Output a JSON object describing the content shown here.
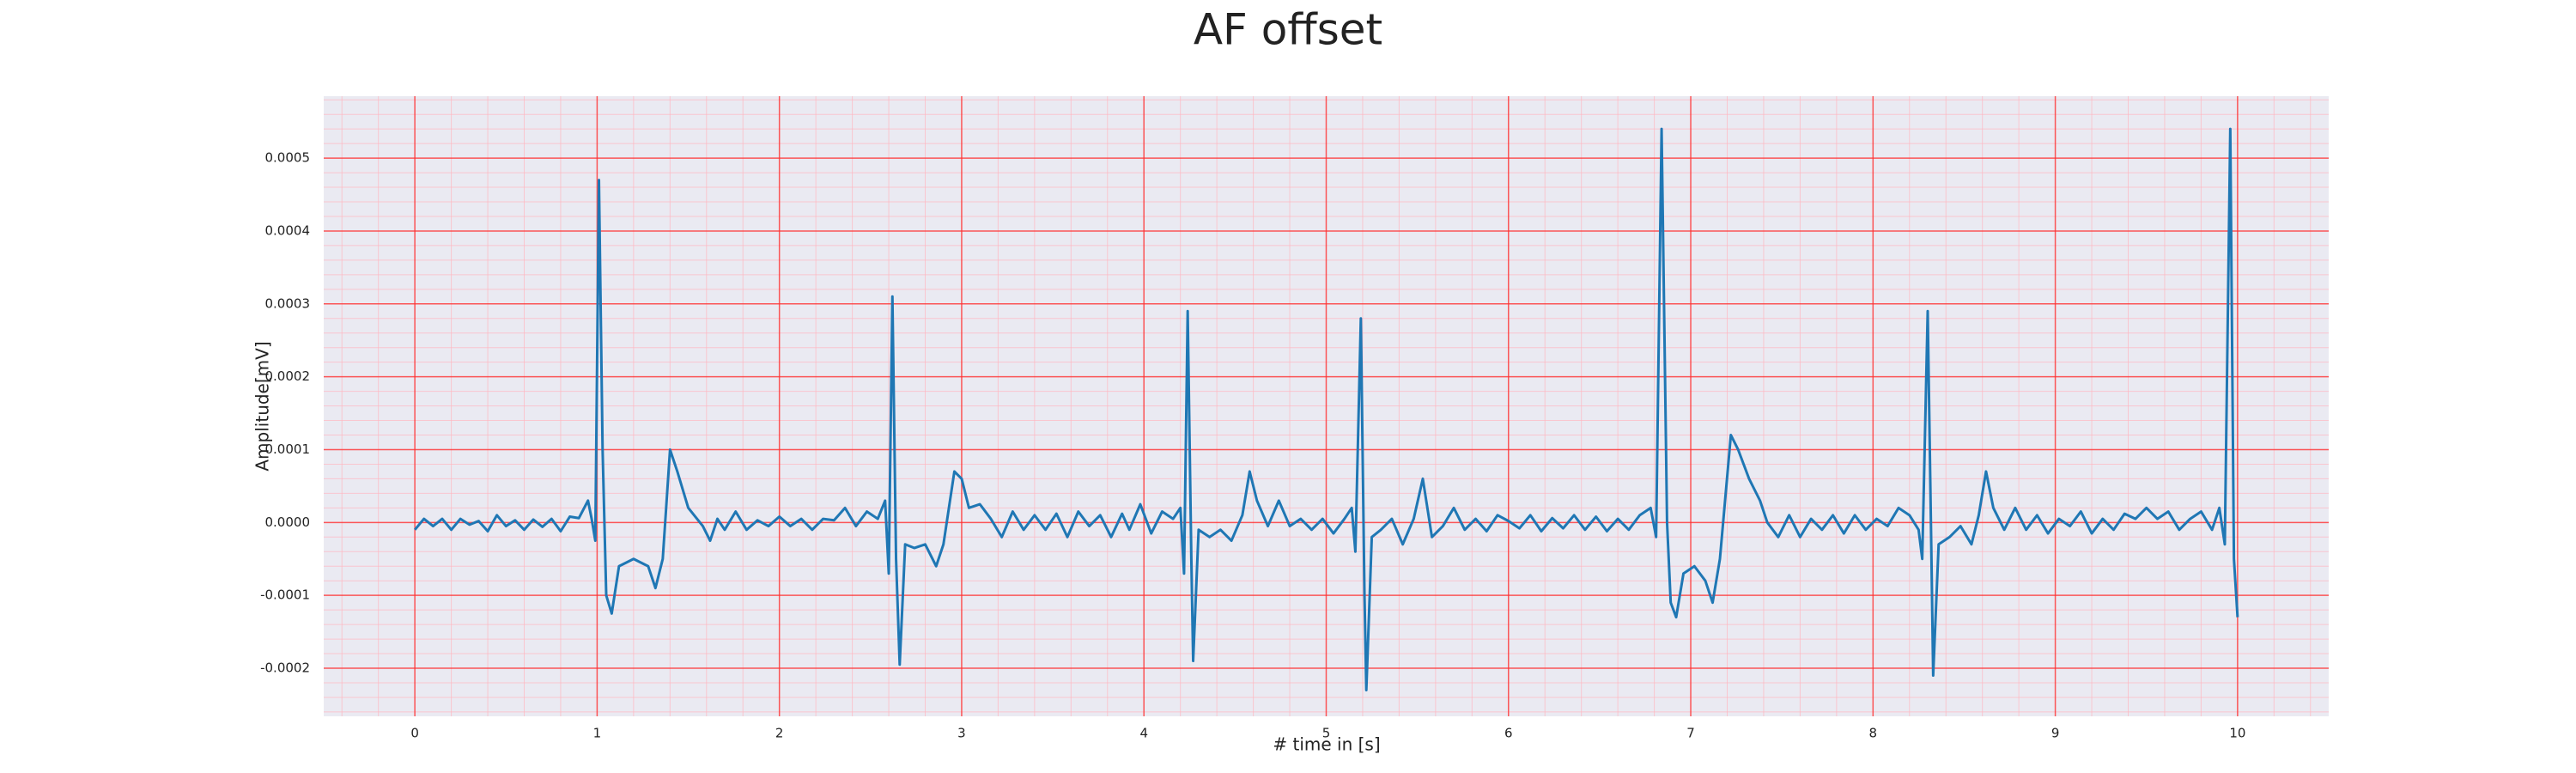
{
  "chart_data": {
    "type": "line",
    "title": "AF offset",
    "x_label": "# time in [s]",
    "y_label": "Amplitude[mV]",
    "color": "#1f77b4",
    "grid": true,
    "minor_grid": true,
    "xlim": [
      -0.5,
      10.5
    ],
    "ylim": [
      -0.000266,
      0.000585
    ],
    "xticks": [
      0,
      1,
      2,
      3,
      4,
      5,
      6,
      7,
      8,
      9,
      10
    ],
    "yticks": [
      -0.0002,
      -0.0001,
      {
        "value": 0,
        "label": "0.0000"
      },
      0.0001,
      0.0002,
      0.0003,
      0.0004,
      0.0005
    ],
    "x": [
      0,
      0.05,
      0.1,
      0.15,
      0.2,
      0.25,
      0.3,
      0.35,
      0.4,
      0.45,
      0.5,
      0.55,
      0.6,
      0.65,
      0.7,
      0.75,
      0.8,
      0.85,
      0.9,
      0.95,
      0.97,
      0.99,
      1.01,
      1.03,
      1.05,
      1.08,
      1.12,
      1.2,
      1.28,
      1.32,
      1.36,
      1.4,
      1.44,
      1.5,
      1.58,
      1.62,
      1.66,
      1.7,
      1.76,
      1.82,
      1.88,
      1.94,
      2.0,
      2.06,
      2.12,
      2.18,
      2.24,
      2.3,
      2.36,
      2.42,
      2.48,
      2.54,
      2.58,
      2.6,
      2.62,
      2.64,
      2.66,
      2.69,
      2.74,
      2.8,
      2.86,
      2.9,
      2.96,
      3.0,
      3.04,
      3.1,
      3.16,
      3.22,
      3.28,
      3.34,
      3.4,
      3.46,
      3.52,
      3.58,
      3.64,
      3.7,
      3.76,
      3.82,
      3.88,
      3.92,
      3.98,
      4.04,
      4.1,
      4.16,
      4.2,
      4.22,
      4.24,
      4.26,
      4.27,
      4.3,
      4.36,
      4.42,
      4.48,
      4.54,
      4.58,
      4.62,
      4.68,
      4.74,
      4.8,
      4.86,
      4.92,
      4.98,
      5.04,
      5.1,
      5.14,
      5.16,
      5.19,
      5.21,
      5.22,
      5.25,
      5.3,
      5.36,
      5.42,
      5.48,
      5.53,
      5.58,
      5.64,
      5.7,
      5.76,
      5.82,
      5.88,
      5.94,
      6.0,
      6.06,
      6.12,
      6.18,
      6.24,
      6.3,
      6.36,
      6.42,
      6.48,
      6.54,
      6.6,
      6.66,
      6.72,
      6.78,
      6.81,
      6.84,
      6.87,
      6.89,
      6.92,
      6.96,
      7.02,
      7.08,
      7.12,
      7.16,
      7.22,
      7.26,
      7.32,
      7.38,
      7.42,
      7.48,
      7.54,
      7.6,
      7.66,
      7.72,
      7.78,
      7.84,
      7.9,
      7.96,
      8.02,
      8.08,
      8.14,
      8.2,
      8.25,
      8.27,
      8.3,
      8.32,
      8.33,
      8.36,
      8.42,
      8.48,
      8.54,
      8.58,
      8.62,
      8.66,
      8.72,
      8.78,
      8.84,
      8.9,
      8.96,
      9.02,
      9.08,
      9.14,
      9.2,
      9.26,
      9.32,
      9.38,
      9.44,
      9.5,
      9.56,
      9.62,
      9.68,
      9.74,
      9.8,
      9.86,
      9.9,
      9.93,
      9.96,
      9.98,
      10.0
    ],
    "values": [
      -1e-05,
      5e-06,
      -5e-06,
      5e-06,
      -1e-05,
      5e-06,
      -3e-06,
      2e-06,
      -1.2e-05,
      1e-05,
      -5e-06,
      3e-06,
      -1e-05,
      4e-06,
      -6e-06,
      5e-06,
      -1.2e-05,
      8e-06,
      6e-06,
      3e-05,
      5e-06,
      -2.5e-05,
      0.00047,
      0.0001,
      -0.0001,
      -0.000125,
      -6e-05,
      -5e-05,
      -6e-05,
      -9e-05,
      -5e-05,
      0.0001,
      7e-05,
      2e-05,
      -5e-06,
      -2.5e-05,
      5e-06,
      -1e-05,
      1.5e-05,
      -1e-05,
      3e-06,
      -5e-06,
      8e-06,
      -5e-06,
      5e-06,
      -1e-05,
      5e-06,
      3e-06,
      2e-05,
      -5e-06,
      1.5e-05,
      5e-06,
      3e-05,
      -7e-05,
      0.00031,
      -5e-05,
      -0.000195,
      -3e-05,
      -3.5e-05,
      -3e-05,
      -6e-05,
      -3e-05,
      7e-05,
      6e-05,
      2e-05,
      2.5e-05,
      5e-06,
      -2e-05,
      1.5e-05,
      -1e-05,
      1e-05,
      -1e-05,
      1.2e-05,
      -2e-05,
      1.5e-05,
      -5e-06,
      1e-05,
      -2e-05,
      1.2e-05,
      -1e-05,
      2.5e-05,
      -1.5e-05,
      1.5e-05,
      5e-06,
      2e-05,
      -7e-05,
      0.00029,
      -5e-05,
      -0.00019,
      -1e-05,
      -2e-05,
      -1e-05,
      -2.5e-05,
      1e-05,
      7e-05,
      3e-05,
      -5e-06,
      3e-05,
      -5e-06,
      5e-06,
      -1e-05,
      5e-06,
      -1.5e-05,
      5e-06,
      2e-05,
      -4e-05,
      0.00028,
      -0.0001,
      -0.00023,
      -2e-05,
      -1e-05,
      5e-06,
      -3e-05,
      5e-06,
      6e-05,
      -2e-05,
      -5e-06,
      2e-05,
      -1e-05,
      5e-06,
      -1.2e-05,
      1e-05,
      2e-06,
      -8e-06,
      1e-05,
      -1.2e-05,
      6e-06,
      -8e-06,
      1e-05,
      -1e-05,
      8e-06,
      -1.2e-05,
      5e-06,
      -1e-05,
      1e-05,
      2e-05,
      -2e-05,
      0.00054,
      0,
      -0.00011,
      -0.00013,
      -7e-05,
      -6e-05,
      -8e-05,
      -0.00011,
      -5e-05,
      0.00012,
      0.0001,
      6e-05,
      3e-05,
      0,
      -2e-05,
      1e-05,
      -2e-05,
      5e-06,
      -1e-05,
      1e-05,
      -1.5e-05,
      1e-05,
      -1e-05,
      5e-06,
      -5e-06,
      2e-05,
      1e-05,
      -1e-05,
      -5e-05,
      0.00029,
      -4e-05,
      -0.00021,
      -3e-05,
      -2e-05,
      -5e-06,
      -3e-05,
      1e-05,
      7e-05,
      2e-05,
      -1e-05,
      2e-05,
      -1e-05,
      1e-05,
      -1.5e-05,
      5e-06,
      -5e-06,
      1.5e-05,
      -1.5e-05,
      5e-06,
      -1e-05,
      1.2e-05,
      5e-06,
      2e-05,
      5e-06,
      1.5e-05,
      -1e-05,
      5e-06,
      1.5e-05,
      -1e-05,
      2e-05,
      -3e-05,
      0.00054,
      -5e-05,
      -0.00013
    ]
  }
}
